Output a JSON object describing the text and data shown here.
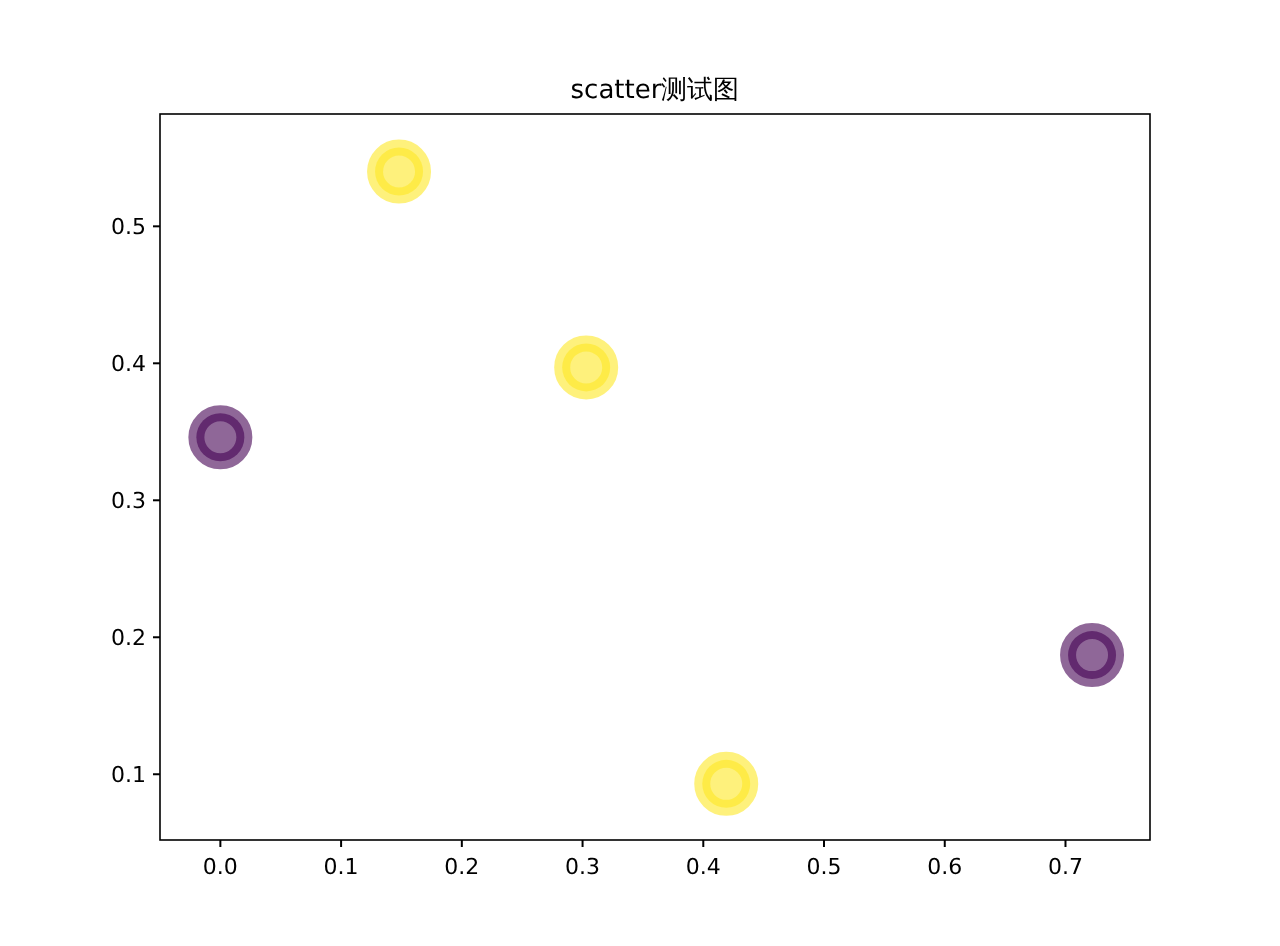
{
  "chart_data": {
    "type": "scatter",
    "title": "scatter测试图",
    "x": [
      0.0,
      0.148,
      0.303,
      0.419,
      0.722
    ],
    "values": [
      0.346,
      0.54,
      0.397,
      0.093,
      0.187
    ],
    "colors": [
      "#440154",
      "#fde725",
      "#fde725",
      "#fde725",
      "#440154"
    ],
    "xlim": [
      -0.05,
      0.77
    ],
    "xticks": [
      {
        "value": 0,
        "label": "0.0"
      },
      0.1,
      0.2,
      0.3,
      0.4,
      0.5,
      0.6,
      0.7
    ],
    "ylim": [
      0.052,
      0.582
    ],
    "yticks": [
      0.1,
      0.2,
      0.3,
      0.4,
      0.5
    ],
    "marker": "circle",
    "grid": false
  }
}
